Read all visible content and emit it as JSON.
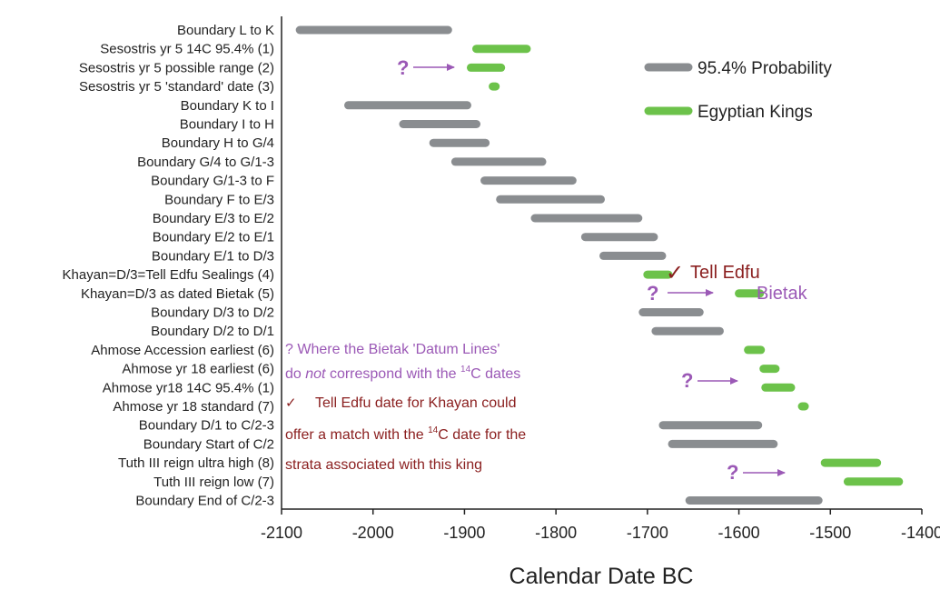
{
  "chart_data": {
    "type": "range-bar",
    "title": "",
    "xlabel": "Calendar Date BC",
    "ylabel": "",
    "xlim": [
      -2100,
      -1400
    ],
    "xticks": [
      -2100,
      -2000,
      -1900,
      -1800,
      -1700,
      -1600,
      -1500,
      -1400
    ],
    "grid": false,
    "legend_position": "top-right",
    "colors": {
      "probability": "#8a8d90",
      "kings": "#6cc24a",
      "annotation": "#9b59b6",
      "match": "#8b2020"
    },
    "series_names": {
      "probability": "95.4% Probability",
      "kings": "Egyptian Kings"
    },
    "rows": [
      {
        "label": "Boundary L to K",
        "start": -2080,
        "end": -1918,
        "series": "probability"
      },
      {
        "label": "Sesostris yr 5 14C 95.4% (1)",
        "start": -1887,
        "end": -1832,
        "series": "kings"
      },
      {
        "label": "Sesostris yr 5 possible range (2)",
        "start": -1893,
        "end": -1860,
        "series": "kings"
      },
      {
        "label": "Sesostris yr 5 'standard' date (3)",
        "start": -1869,
        "end": -1866,
        "series": "kings"
      },
      {
        "label": "Boundary K to I",
        "start": -2027,
        "end": -1897,
        "series": "probability"
      },
      {
        "label": "Boundary I to H",
        "start": -1967,
        "end": -1887,
        "series": "probability"
      },
      {
        "label": "Boundary H to G/4",
        "start": -1934,
        "end": -1877,
        "series": "probability"
      },
      {
        "label": "Boundary  G/4 to G/1-3",
        "start": -1910,
        "end": -1815,
        "series": "probability"
      },
      {
        "label": "Boundary G/1-3 to F",
        "start": -1878,
        "end": -1782,
        "series": "probability"
      },
      {
        "label": "Boundary F to E/3",
        "start": -1861,
        "end": -1751,
        "series": "probability"
      },
      {
        "label": "Boundary E/3 to E/2",
        "start": -1823,
        "end": -1710,
        "series": "probability"
      },
      {
        "label": "Boundary E/2 to E/1",
        "start": -1768,
        "end": -1693,
        "series": "probability"
      },
      {
        "label": "Boundary E/1 to D/3",
        "start": -1748,
        "end": -1684,
        "series": "probability"
      },
      {
        "label": "Khayan=D/3=Tell Edfu Sealings (4)",
        "start": -1700,
        "end": -1677,
        "series": "kings"
      },
      {
        "label": "Khayan=D/3 as dated Bietak (5)",
        "start": -1600,
        "end": -1577,
        "series": "kings"
      },
      {
        "label": "Boundary D/3 to D/2",
        "start": -1705,
        "end": -1643,
        "series": "probability"
      },
      {
        "label": "Boundary D/2 to D/1",
        "start": -1691,
        "end": -1621,
        "series": "probability"
      },
      {
        "label": "Ahmose Accession earliest (6)",
        "start": -1590,
        "end": -1576,
        "series": "kings"
      },
      {
        "label": "Ahmose yr 18 earliest (6)",
        "start": -1573,
        "end": -1560,
        "series": "kings"
      },
      {
        "label": "Ahmose yr18 14C 95.4% (1)",
        "start": -1571,
        "end": -1543,
        "series": "kings"
      },
      {
        "label": "Ahmose yr 18 standard (7)",
        "start": -1531,
        "end": -1528,
        "series": "kings"
      },
      {
        "label": "Boundary D/1 to C/2-3",
        "start": -1683,
        "end": -1579,
        "series": "probability"
      },
      {
        "label": "Boundary Start of C/2",
        "start": -1673,
        "end": -1562,
        "series": "probability"
      },
      {
        "label": "Tuth III reign ultra high (8)",
        "start": -1506,
        "end": -1449,
        "series": "kings"
      },
      {
        "label": "Tuth III reign low (7)",
        "start": -1481,
        "end": -1425,
        "series": "kings"
      },
      {
        "label": "Boundary End of C/2-3",
        "start": -1654,
        "end": -1513,
        "series": "probability"
      }
    ]
  },
  "legend": {
    "probability_label": "95.4% Probability",
    "kings_label": "Egyptian Kings"
  },
  "annotations": {
    "tell_edfu_label": "Tell Edfu",
    "bietak_label": "Bietak",
    "question_mark": "?",
    "check_mark": "✓",
    "note_line1": "? Where the Bietak 'Datum Lines'",
    "note_line2_pre": "do ",
    "note_line2_em": "not",
    "note_line2_post": " correspond with the ",
    "note_line3_pre": "Tell Edfu date for Khayan could",
    "note_line4_pre": "offer a match with the ",
    "note_line4_post": "C date for the",
    "note_line5": "strata associated with this king",
    "superscript_14": "14",
    "c_dates": "C dates"
  }
}
